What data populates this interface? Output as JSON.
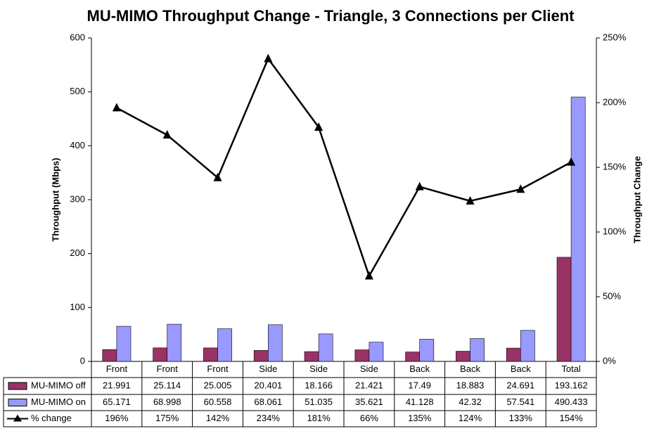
{
  "chart_data": {
    "type": "bar",
    "title": "MU-MIMO Throughput Change - Triangle, 3 Connections per Client",
    "y_label": "Throughput (Mbps)",
    "y2_label": "Throughput Change",
    "categories": [
      "Front",
      "Front",
      "Front",
      "Side",
      "Side",
      "Side",
      "Back",
      "Back",
      "Back",
      "Total"
    ],
    "series": [
      {
        "name": "MU-MIMO off",
        "type": "bar",
        "color": "#993366",
        "values": [
          21.991,
          25.114,
          25.005,
          20.401,
          18.166,
          21.421,
          17.49,
          18.883,
          24.691,
          193.162
        ]
      },
      {
        "name": "MU-MIMO on",
        "type": "bar",
        "color": "#9999ff",
        "values": [
          65.171,
          68.998,
          60.558,
          68.061,
          51.035,
          35.621,
          41.128,
          42.32,
          57.541,
          490.433
        ]
      },
      {
        "name": "% change",
        "type": "line",
        "axis": "y2",
        "color": "#000000",
        "values": [
          196,
          175,
          142,
          234,
          181,
          66,
          135,
          124,
          133,
          154
        ],
        "value_labels": [
          "196%",
          "175%",
          "142%",
          "234%",
          "181%",
          "66%",
          "135%",
          "124%",
          "133%",
          "154%"
        ]
      }
    ],
    "ylim": [
      0,
      600
    ],
    "yticks": [
      0,
      100,
      200,
      300,
      400,
      500,
      600
    ],
    "y2lim": [
      0,
      250
    ],
    "y2ticks": [
      {
        "value": 0,
        "label": "0%"
      },
      {
        "value": 50,
        "label": "50%"
      },
      {
        "value": 100,
        "label": "100%"
      },
      {
        "value": 150,
        "label": "150%"
      },
      {
        "value": 200,
        "label": "200%"
      },
      {
        "value": 250,
        "label": "250%"
      }
    ],
    "grid": false
  }
}
